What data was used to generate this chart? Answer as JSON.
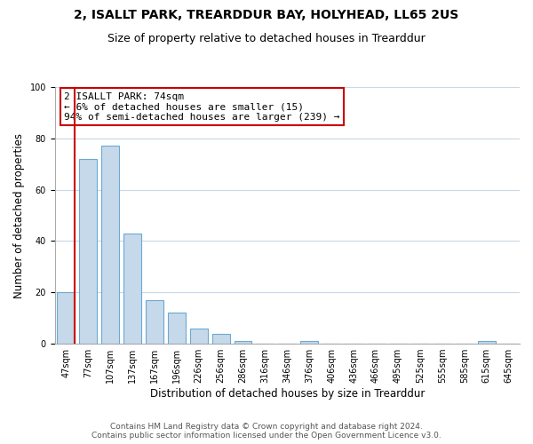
{
  "title": "2, ISALLT PARK, TREARDDUR BAY, HOLYHEAD, LL65 2US",
  "subtitle": "Size of property relative to detached houses in Trearddur",
  "xlabel": "Distribution of detached houses by size in Trearddur",
  "ylabel": "Number of detached properties",
  "bar_labels": [
    "47sqm",
    "77sqm",
    "107sqm",
    "137sqm",
    "167sqm",
    "196sqm",
    "226sqm",
    "256sqm",
    "286sqm",
    "316sqm",
    "346sqm",
    "376sqm",
    "406sqm",
    "436sqm",
    "466sqm",
    "495sqm",
    "525sqm",
    "555sqm",
    "585sqm",
    "615sqm",
    "645sqm"
  ],
  "bar_values": [
    20,
    72,
    77,
    43,
    17,
    12,
    6,
    4,
    1,
    0,
    0,
    1,
    0,
    0,
    0,
    0,
    0,
    0,
    0,
    1,
    0
  ],
  "bar_color": "#c5d9ea",
  "bar_edge_color": "#6aaad4",
  "marker_color": "#cc0000",
  "ylim": [
    0,
    100
  ],
  "annotation_title": "2 ISALLT PARK: 74sqm",
  "annotation_line1": "← 6% of detached houses are smaller (15)",
  "annotation_line2": "94% of semi-detached houses are larger (239) →",
  "annotation_box_color": "#ffffff",
  "annotation_box_edge": "#cc0000",
  "footer_line1": "Contains HM Land Registry data © Crown copyright and database right 2024.",
  "footer_line2": "Contains public sector information licensed under the Open Government Licence v3.0.",
  "bg_color": "#ffffff",
  "grid_color": "#c8d8e8",
  "title_fontsize": 10,
  "subtitle_fontsize": 9,
  "axis_label_fontsize": 8.5,
  "tick_fontsize": 7,
  "footer_fontsize": 6.5,
  "annotation_fontsize": 8
}
